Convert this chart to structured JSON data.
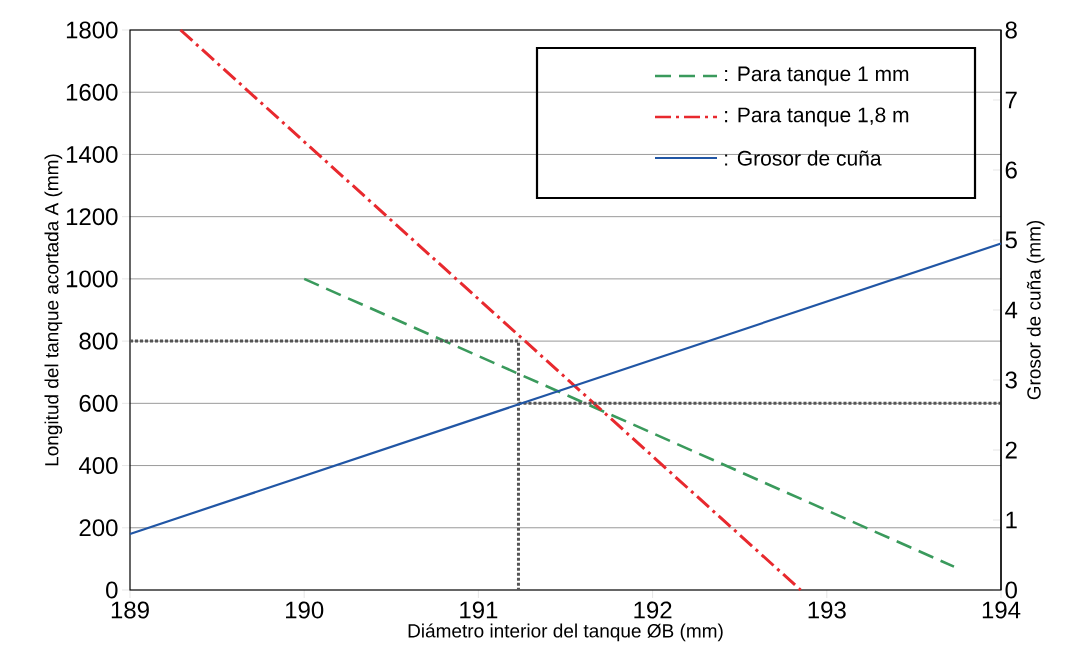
{
  "chart_data": {
    "type": "line",
    "xlabel": "Diámetro interior del tanque ØB (mm)",
    "ylabel": "Longitud del tanque acortada A (mm)",
    "y2label": "Grosor de cuña (mm)",
    "xlim": [
      189,
      194
    ],
    "xticks": [
      189,
      190,
      191,
      192,
      193,
      194
    ],
    "ylim": [
      0,
      1800
    ],
    "yticks": [
      0,
      200,
      400,
      600,
      800,
      1000,
      1200,
      1400,
      1600,
      1800
    ],
    "y2lim": [
      0,
      8
    ],
    "y2ticks": [
      0,
      1,
      2,
      3,
      4,
      5,
      6,
      7,
      8
    ],
    "grid": "y",
    "legend": "top right",
    "series": [
      {
        "name": ": Para tanque 1 mm",
        "color": "#3a9a5c",
        "line_style": "dashed",
        "x": [
          190,
          193.73
        ],
        "values": [
          1000,
          75
        ]
      },
      {
        "name": ": Para tanque 1,8 m",
        "color": "#e8292e",
        "line_style": "dashdot",
        "x": [
          189.29,
          192.85
        ],
        "values": [
          1800,
          0
        ]
      },
      {
        "name": ": Grosor de cuña",
        "color": "#2156a5",
        "line_style": "solid",
        "axis": "y2",
        "x": [
          189,
          194
        ],
        "values": [
          0.8,
          4.95
        ]
      },
      {
        "color": "#555555",
        "line_style": "dotted",
        "x": [
          189,
          191.23,
          191.23
        ],
        "values": [
          800,
          800,
          0
        ]
      },
      {
        "color": "#555555",
        "line_style": "dotted",
        "x": [
          191.23,
          194
        ],
        "values": [
          600,
          600
        ]
      }
    ]
  }
}
